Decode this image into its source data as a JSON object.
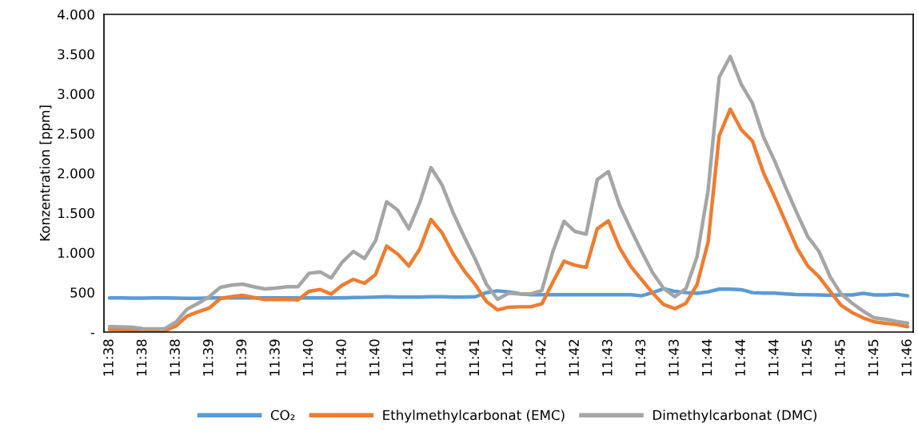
{
  "chart_data": {
    "type": "line",
    "ylabel": "Konzentration [ppm]",
    "categories": [
      "11:38",
      null,
      null,
      "11:38",
      null,
      null,
      "11:38",
      null,
      null,
      "11:39",
      null,
      null,
      "11:39",
      null,
      null,
      "11:39",
      null,
      null,
      "11:40",
      null,
      null,
      "11:40",
      null,
      null,
      "11:40",
      null,
      null,
      "11:41",
      null,
      null,
      "11:41",
      null,
      null,
      "11:41",
      null,
      null,
      "11:42",
      null,
      null,
      "11:42",
      null,
      null,
      "11:42",
      null,
      null,
      "11:43",
      null,
      null,
      "11:43",
      null,
      null,
      "11:43",
      null,
      null,
      "11:44",
      null,
      null,
      "11:44",
      null,
      null,
      "11:44",
      null,
      null,
      "11:45",
      null,
      null,
      "11:45",
      null,
      null,
      "11:45",
      null,
      null,
      "11:46"
    ],
    "series": [
      {
        "name": "CO₂",
        "color": "#5b9bd5",
        "values": [
          430,
          430,
          428,
          428,
          430,
          430,
          428,
          425,
          425,
          430,
          430,
          430,
          430,
          430,
          430,
          430,
          430,
          430,
          430,
          430,
          430,
          430,
          435,
          436,
          440,
          445,
          440,
          440,
          440,
          445,
          445,
          440,
          440,
          445,
          496,
          519,
          506,
          483,
          470,
          470,
          470,
          470,
          470,
          470,
          470,
          470,
          470,
          470,
          456,
          496,
          546,
          512,
          496,
          487,
          506,
          540,
          540,
          533,
          496,
          490,
          490,
          480,
          473,
          470,
          467,
          463,
          467,
          467,
          487,
          467,
          467,
          476,
          456
        ]
      },
      {
        "name": "Ethylmethylcarbonat (EMC)",
        "color": "#ed7d31",
        "values": [
          33,
          30,
          23,
          17,
          17,
          17,
          77,
          201,
          255,
          302,
          422,
          445,
          462,
          436,
          409,
          409,
          412,
          405,
          513,
          536,
          478,
          590,
          663,
          613,
          724,
          1082,
          982,
          831,
          1048,
          1417,
          1249,
          982,
          771,
          596,
          385,
          278,
          312,
          318,
          318,
          355,
          630,
          891,
          841,
          814,
          1300,
          1400,
          1065,
          831,
          660,
          490,
          345,
          295,
          362,
          596,
          1133,
          2472,
          2807,
          2546,
          2405,
          2003,
          1702,
          1384,
          1065,
          831,
          697,
          513,
          335,
          244,
          178,
          128,
          111,
          94,
          67
        ]
      },
      {
        "name": "Dimethylcarbonat (DMC)",
        "color": "#a5a5a5",
        "values": [
          67,
          65,
          60,
          43,
          40,
          43,
          127,
          288,
          362,
          445,
          563,
          590,
          603,
          570,
          543,
          552,
          570,
          570,
          740,
          757,
          680,
          881,
          1015,
          925,
          1149,
          1641,
          1535,
          1300,
          1635,
          2070,
          1852,
          1500,
          1199,
          915,
          603,
          412,
          489,
          479,
          479,
          523,
          1015,
          1394,
          1266,
          1233,
          1920,
          2020,
          1601,
          1300,
          1015,
          747,
          546,
          445,
          546,
          948,
          1786,
          3209,
          3470,
          3116,
          2881,
          2455,
          2154,
          1819,
          1501,
          1199,
          1015,
          697,
          479,
          362,
          261,
          178,
          161,
          134,
          111
        ]
      }
    ],
    "ylim": [
      0,
      4000
    ],
    "yticks": [
      {
        "value": 0,
        "label": "-"
      },
      {
        "value": 500,
        "label": "500"
      },
      {
        "value": 1000,
        "label": "1.000"
      },
      {
        "value": 1500,
        "label": "1.500"
      },
      {
        "value": 2000,
        "label": "2.000"
      },
      {
        "value": 2500,
        "label": "2.500"
      },
      {
        "value": 3000,
        "label": "3.000"
      },
      {
        "value": 3500,
        "label": "3.500"
      },
      {
        "value": 4000,
        "label": "4.000"
      }
    ],
    "grid": false,
    "legend": "bottom",
    "marker": "none",
    "line_style": "solid"
  }
}
